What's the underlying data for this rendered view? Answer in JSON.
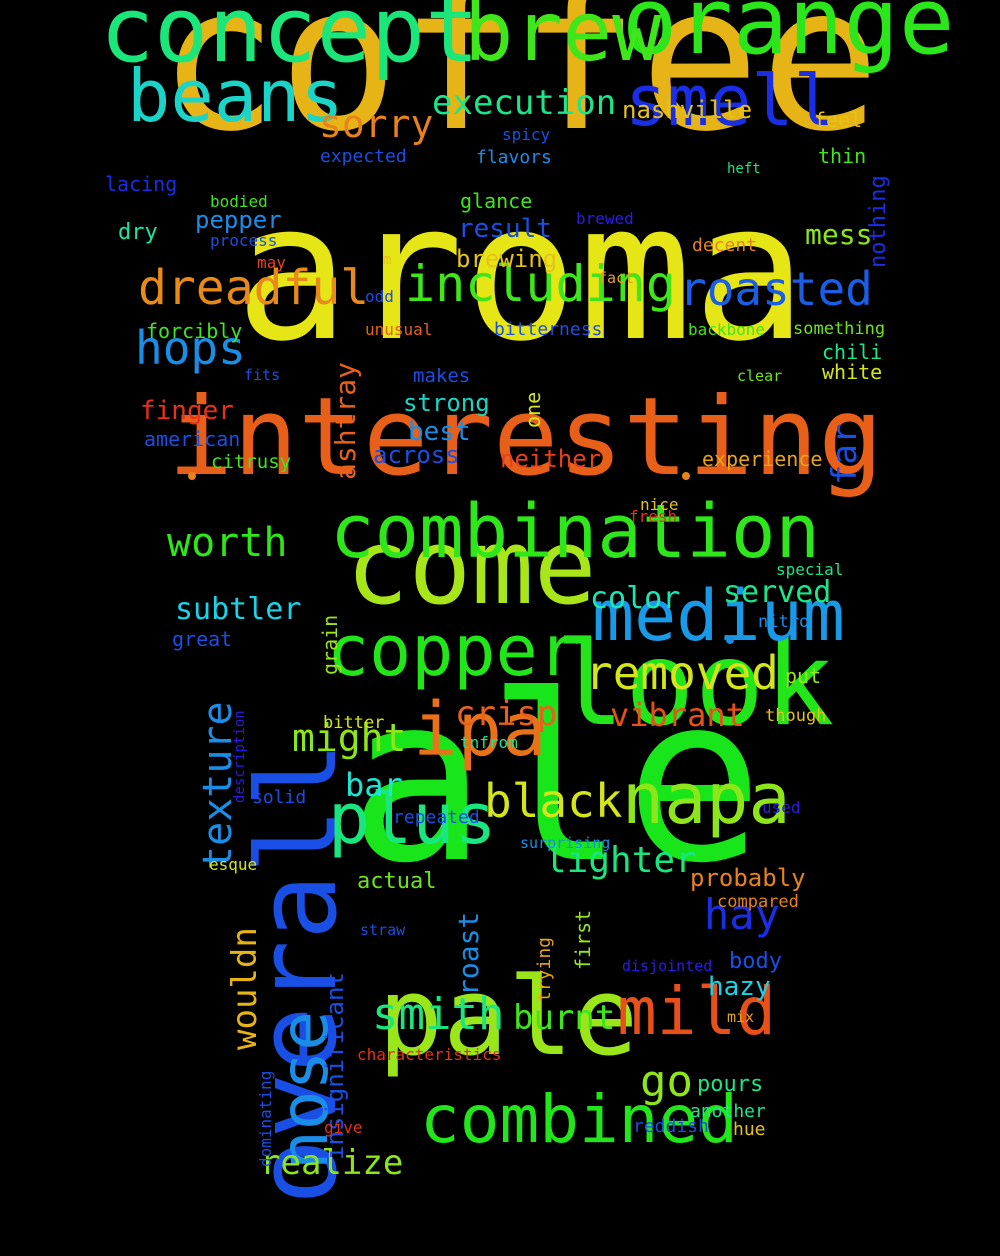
{
  "words": [
    {
      "text": "coffee",
      "color": "#e6b416"
    },
    {
      "text": "aroma",
      "color": "#e6e616"
    },
    {
      "text": "ale",
      "color": "#18e61a"
    },
    {
      "text": "interesting",
      "color": "#e85f1a"
    },
    {
      "text": "overall",
      "color": "#1a4fe6"
    },
    {
      "text": "look",
      "color": "#22e61a"
    },
    {
      "text": "pale",
      "color": "#9ae61a"
    },
    {
      "text": "come",
      "color": "#a8e61a"
    },
    {
      "text": "concept",
      "color": "#1ae67a"
    },
    {
      "text": "orange",
      "color": "#2ae61a"
    },
    {
      "text": "brew",
      "color": "#3ee61a"
    },
    {
      "text": "beans",
      "color": "#1ad4c8"
    },
    {
      "text": "smell",
      "color": "#1a2ee6"
    },
    {
      "text": "combination",
      "color": "#2ee61a"
    },
    {
      "text": "medium",
      "color": "#1a9ae6"
    },
    {
      "text": "copper",
      "color": "#22e61a"
    },
    {
      "text": "ipa",
      "color": "#e8721a"
    },
    {
      "text": "napa",
      "color": "#8ee61a"
    },
    {
      "text": "plus",
      "color": "#1ae680"
    },
    {
      "text": "nose",
      "color": "#1a8ee6"
    },
    {
      "text": "mild",
      "color": "#e8501a"
    },
    {
      "text": "combined",
      "color": "#22e61a"
    },
    {
      "text": "dreadful",
      "color": "#e88a1a"
    },
    {
      "text": "including",
      "color": "#3ee61a"
    },
    {
      "text": "roasted",
      "color": "#1a5ee6"
    },
    {
      "text": "hops",
      "color": "#1a8ee6"
    },
    {
      "text": "removed",
      "color": "#d4e61a"
    },
    {
      "text": "black",
      "color": "#d4e61a"
    },
    {
      "text": "texture",
      "color": "#1a8ee6"
    },
    {
      "text": "worth",
      "color": "#2ee61a"
    },
    {
      "text": "smith",
      "color": "#1ae680"
    },
    {
      "text": "execution",
      "color": "#1ae68a"
    },
    {
      "text": "sorry",
      "color": "#e8821a"
    },
    {
      "text": "might",
      "color": "#8ee61a"
    },
    {
      "text": "crisp",
      "color": "#e8601a"
    },
    {
      "text": "vibrant",
      "color": "#e8501a"
    },
    {
      "text": "lighter",
      "color": "#1ae680"
    },
    {
      "text": "hay",
      "color": "#1a2ee6"
    },
    {
      "text": "go",
      "color": "#8ee61a"
    },
    {
      "text": "realize",
      "color": "#8ee61a"
    },
    {
      "text": "burnt",
      "color": "#3ee61a"
    },
    {
      "text": "wouldn",
      "color": "#e6b416"
    },
    {
      "text": "ashtray",
      "color": "#e8601a"
    },
    {
      "text": "far",
      "color": "#1a4fe6"
    },
    {
      "text": "subtler",
      "color": "#1ad4e6"
    },
    {
      "text": "served",
      "color": "#1ae68a"
    },
    {
      "text": "color",
      "color": "#1ae6b4"
    },
    {
      "text": "bar",
      "color": "#1ae6d4"
    },
    {
      "text": "roast",
      "color": "#1a8ee6"
    },
    {
      "text": "nashville",
      "color": "#e6c216"
    },
    {
      "text": "result",
      "color": "#1a4fe6"
    },
    {
      "text": "brewing",
      "color": "#e6c216"
    },
    {
      "text": "mess",
      "color": "#8ee61a"
    },
    {
      "text": "pepper",
      "color": "#1a8ee6"
    },
    {
      "text": "finger",
      "color": "#e8301a"
    },
    {
      "text": "strong",
      "color": "#1ad4c8"
    },
    {
      "text": "best",
      "color": "#1a8ee6"
    },
    {
      "text": "neither",
      "color": "#e8401a"
    },
    {
      "text": "experience",
      "color": "#e6a416"
    },
    {
      "text": "probably",
      "color": "#e8821a"
    },
    {
      "text": "hazy",
      "color": "#1ad4e6"
    },
    {
      "text": "body",
      "color": "#1a4fe6"
    },
    {
      "text": "pours",
      "color": "#1ae680"
    },
    {
      "text": "nothing",
      "color": "#1a2ee6"
    },
    {
      "text": "insignificant",
      "color": "#1a4fe6"
    },
    {
      "text": "across",
      "color": "#1a4fe6"
    },
    {
      "text": "actual",
      "color": "#6ee61a"
    },
    {
      "text": "first",
      "color": "#9ae61a"
    },
    {
      "text": "trying",
      "color": "#e6a416"
    },
    {
      "text": "grain",
      "color": "#9ae61a"
    },
    {
      "text": "one",
      "color": "#d4e61a"
    },
    {
      "text": "description",
      "color": "#2e1ae6"
    },
    {
      "text": "dominating",
      "color": "#1a4fe6"
    },
    {
      "text": "feel",
      "color": "#e6c216"
    },
    {
      "text": "thin",
      "color": "#3ee61a"
    },
    {
      "text": "spicy",
      "color": "#1a4fe6"
    },
    {
      "text": "expected",
      "color": "#1a4fe6"
    },
    {
      "text": "flavors",
      "color": "#1a8ee6"
    },
    {
      "text": "heft",
      "color": "#1ae68a"
    },
    {
      "text": "lacing",
      "color": "#1a2ee6"
    },
    {
      "text": "bodied",
      "color": "#3ee61a"
    },
    {
      "text": "glance",
      "color": "#3ee61a"
    },
    {
      "text": "brewed",
      "color": "#2e1ae6"
    },
    {
      "text": "dry",
      "color": "#1ae6a4"
    },
    {
      "text": "process",
      "color": "#1a4fe6"
    },
    {
      "text": "decent",
      "color": "#e8821a"
    },
    {
      "text": "may",
      "color": "#e8401a"
    },
    {
      "text": "m",
      "color": "#e6c216"
    },
    {
      "text": "fact",
      "color": "#e6a416"
    },
    {
      "text": "odd",
      "color": "#1a4fe6"
    },
    {
      "text": "forcibly",
      "color": "#3ee61a"
    },
    {
      "text": "unusual",
      "color": "#e8601a"
    },
    {
      "text": "bitterness",
      "color": "#1a4fe6"
    },
    {
      "text": "backbone",
      "color": "#3ee61a"
    },
    {
      "text": "something",
      "color": "#6ee61a"
    },
    {
      "text": "chili",
      "color": "#1ae68a"
    },
    {
      "text": "white",
      "color": "#d4e61a"
    },
    {
      "text": "fits",
      "color": "#1a4fe6"
    },
    {
      "text": "makes",
      "color": "#1a4fe6"
    },
    {
      "text": "clear",
      "color": "#6ee61a"
    },
    {
      "text": "american",
      "color": "#1a4fe6"
    },
    {
      "text": "citrusy",
      "color": "#3ee61a"
    },
    {
      "text": "nice",
      "color": "#e6c216"
    },
    {
      "text": "fresh",
      "color": "#e8301a"
    },
    {
      "text": "special",
      "color": "#1ae68a"
    },
    {
      "text": "great",
      "color": "#1a4fe6"
    },
    {
      "text": "nitro",
      "color": "#1a8ee6"
    },
    {
      "text": "put",
      "color": "#9ae61a"
    },
    {
      "text": "bitter",
      "color": "#d4e61a"
    },
    {
      "text": "tnfrom",
      "color": "#1ae68a"
    },
    {
      "text": "though",
      "color": "#e6c216"
    },
    {
      "text": "solid",
      "color": "#1a4fe6"
    },
    {
      "text": "repeated",
      "color": "#1a4fe6"
    },
    {
      "text": "used",
      "color": "#2e1ae6"
    },
    {
      "text": "surprising",
      "color": "#1a8ee6"
    },
    {
      "text": "esque",
      "color": "#d4e61a"
    },
    {
      "text": "compared",
      "color": "#e8821a"
    },
    {
      "text": "straw",
      "color": "#1a4fe6"
    },
    {
      "text": "disjointed",
      "color": "#2e1ae6"
    },
    {
      "text": "mix",
      "color": "#e6a416"
    },
    {
      "text": "characteristics",
      "color": "#e8301a"
    },
    {
      "text": "give",
      "color": "#e8301a"
    },
    {
      "text": "reddish",
      "color": "#1a4fe6"
    },
    {
      "text": "another",
      "color": "#1ae68a"
    },
    {
      "text": "hue",
      "color": "#e6c216"
    }
  ],
  "dots": [
    {
      "color": "#e8821a"
    },
    {
      "color": "#e8821a"
    },
    {
      "color": "#1a8ee6"
    }
  ]
}
